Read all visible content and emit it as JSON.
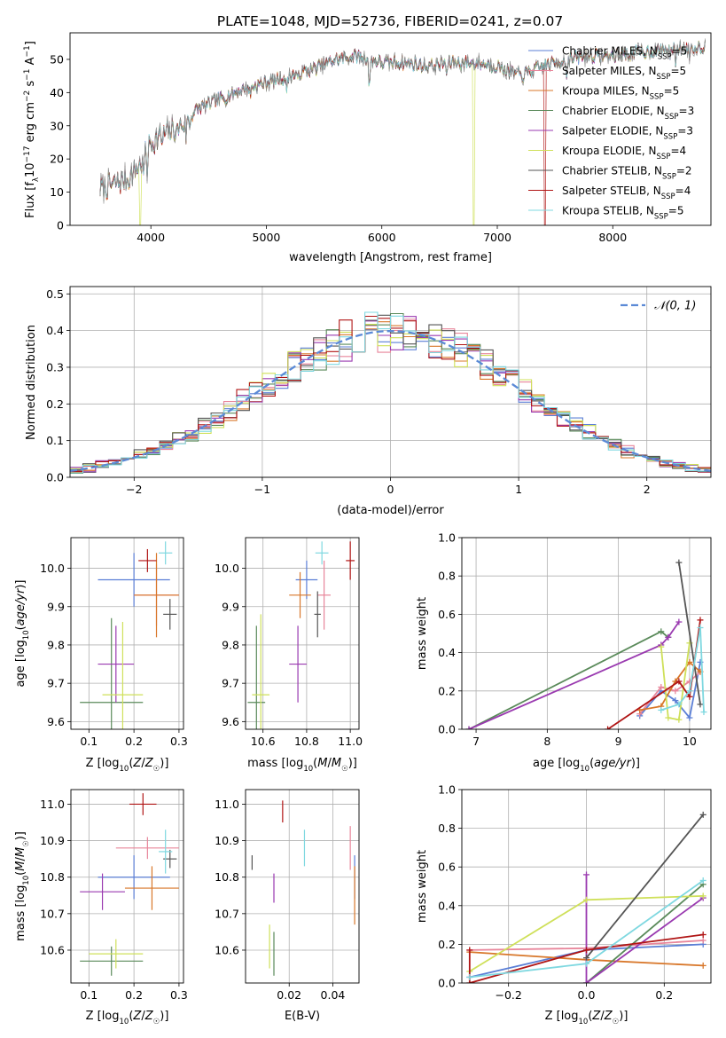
{
  "figure_title": "PLATE=1048, MJD=52736, FIBERID=0241, z=0.07",
  "colors": {
    "Chabrier MILES": "#5b7fd6",
    "Salpeter MILES": "#e8859a",
    "Kroupa MILES": "#d8772a",
    "Chabrier ELODIE": "#5a8a5a",
    "Salpeter ELODIE": "#9a3ab0",
    "Kroupa ELODIE": "#cfe05a",
    "Chabrier STELIB": "#555555",
    "Salpeter STELIB": "#b01515",
    "Kroupa STELIB": "#7fd8e0"
  },
  "chart_data": [
    {
      "id": "spectrum",
      "type": "line",
      "title": "",
      "xlabel": "wavelength [Angstrom, rest frame]",
      "ylabel": "Flux [f_λ10^-17 erg cm^-2 s^-1 A^-1]",
      "xlim": [
        3300,
        8850
      ],
      "ylim": [
        0,
        58
      ],
      "xticks": [
        4000,
        5000,
        6000,
        7000,
        8000
      ],
      "yticks": [
        0,
        10,
        20,
        30,
        40,
        50
      ],
      "grid": false,
      "legend": "top-right",
      "legend_entries": [
        {
          "label": "Chabrier MILES, N",
          "sub": "SSP",
          "suffix": "=5"
        },
        {
          "label": "Salpeter MILES, N",
          "sub": "SSP",
          "suffix": "=5"
        },
        {
          "label": "Kroupa MILES, N",
          "sub": "SSP",
          "suffix": "=5"
        },
        {
          "label": "Chabrier ELODIE, N",
          "sub": "SSP",
          "suffix": "=3"
        },
        {
          "label": "Salpeter ELODIE, N",
          "sub": "SSP",
          "suffix": "=3"
        },
        {
          "label": "Kroupa ELODIE, N",
          "sub": "SSP",
          "suffix": "=4"
        },
        {
          "label": "Chabrier STELIB, N",
          "sub": "SSP",
          "suffix": "=2"
        },
        {
          "label": "Salpeter STELIB, N",
          "sub": "SSP",
          "suffix": "=4"
        },
        {
          "label": "Kroupa STELIB, N",
          "sub": "SSP",
          "suffix": "=5"
        }
      ],
      "continuum": [
        [
          3560,
          11
        ],
        [
          3650,
          12
        ],
        [
          3800,
          14
        ],
        [
          3900,
          18
        ],
        [
          3950,
          21
        ],
        [
          4000,
          25
        ],
        [
          4100,
          27
        ],
        [
          4200,
          29
        ],
        [
          4300,
          31
        ],
        [
          4400,
          35
        ],
        [
          4600,
          38
        ],
        [
          4800,
          41
        ],
        [
          5000,
          43
        ],
        [
          5200,
          45
        ],
        [
          5400,
          47
        ],
        [
          5600,
          50
        ],
        [
          5800,
          51
        ],
        [
          6000,
          49
        ],
        [
          6200,
          49
        ],
        [
          6400,
          48
        ],
        [
          6600,
          49
        ],
        [
          6800,
          49
        ],
        [
          7000,
          48
        ],
        [
          7200,
          45
        ],
        [
          7400,
          48
        ],
        [
          7600,
          50
        ],
        [
          7800,
          51
        ],
        [
          8000,
          51
        ],
        [
          8200,
          52
        ],
        [
          8500,
          53
        ],
        [
          8800,
          54
        ]
      ],
      "absorption_features": [
        [
          3934,
          -6
        ],
        [
          3968,
          -6
        ],
        [
          4101,
          -3
        ],
        [
          4227,
          -3
        ],
        [
          4304,
          -5
        ],
        [
          4340,
          -3
        ],
        [
          4861,
          -3
        ],
        [
          5175,
          -6
        ],
        [
          5270,
          -3
        ],
        [
          5892,
          -12
        ],
        [
          6563,
          -4
        ],
        [
          7600,
          -6
        ],
        [
          8500,
          -3
        ],
        [
          8542,
          -4
        ],
        [
          8662,
          -3
        ]
      ],
      "model_dropouts": [
        {
          "series": "Kroupa ELODIE",
          "x": 3910
        },
        {
          "series": "Kroupa ELODIE",
          "x": 6795
        },
        {
          "series": "Salpeter STELIB",
          "x": 7410
        }
      ]
    },
    {
      "id": "residuals",
      "type": "step",
      "xlabel": "(data-model)/error",
      "ylabel": "Normed distribution",
      "xlim": [
        -2.5,
        2.5
      ],
      "ylim": [
        0,
        0.52
      ],
      "xticks": [
        -2,
        -1,
        0,
        1,
        2
      ],
      "yticks": [
        0.0,
        0.1,
        0.2,
        0.3,
        0.4,
        0.5
      ],
      "grid": true,
      "legend": "top-right",
      "reference_label": "𝒩(0, 1)",
      "reference": "normal(0,1)",
      "bin_width": 0.1,
      "bin_start": -2.5
    },
    {
      "id": "age-vs-Z",
      "type": "scatter",
      "xlabel": "Z [log₁₀(Z/Z☉)]",
      "ylabel": "age  [log₁₀(age/yr)]",
      "xlim": [
        0.06,
        0.31
      ],
      "ylim": [
        9.58,
        10.08
      ],
      "xticks": [
        0.1,
        0.2,
        0.3
      ],
      "yticks": [
        9.6,
        9.7,
        9.8,
        9.9,
        10.0
      ],
      "grid": true,
      "points": [
        {
          "series": "Chabrier MILES",
          "x": 0.2,
          "y": 9.97,
          "xerr": 0.08,
          "yerr": 0.07
        },
        {
          "series": "Salpeter MILES",
          "x": 0.25,
          "y": 9.93,
          "xerr": 0.05,
          "yerr": 0.08
        },
        {
          "series": "Kroupa MILES",
          "x": 0.25,
          "y": 9.93,
          "xerr": 0.05,
          "yerr": 0.11
        },
        {
          "series": "Chabrier ELODIE",
          "x": 0.15,
          "y": 9.65,
          "xerr": 0.07,
          "yerr": 0.22
        },
        {
          "series": "Salpeter ELODIE",
          "x": 0.16,
          "y": 9.75,
          "xerr": 0.04,
          "yerr": 0.1
        },
        {
          "series": "Kroupa ELODIE",
          "x": 0.175,
          "y": 9.67,
          "xerr": 0.045,
          "yerr": 0.19
        },
        {
          "series": "Chabrier STELIB",
          "x": 0.28,
          "y": 9.88,
          "xerr": 0.015,
          "yerr": 0.04
        },
        {
          "series": "Salpeter STELIB",
          "x": 0.23,
          "y": 10.02,
          "xerr": 0.02,
          "yerr": 0.03
        },
        {
          "series": "Kroupa STELIB",
          "x": 0.27,
          "y": 10.04,
          "xerr": 0.015,
          "yerr": 0.03
        }
      ]
    },
    {
      "id": "age-vs-mass",
      "type": "scatter",
      "xlabel": "mass [log₁₀(M/M☉)]",
      "ylabel": "",
      "xlim": [
        10.52,
        11.04
      ],
      "ylim": [
        9.58,
        10.08
      ],
      "xticks": [
        10.6,
        10.8,
        11.0
      ],
      "yticks": [
        9.6,
        9.7,
        9.8,
        9.9,
        10.0
      ],
      "grid": true,
      "points": [
        {
          "series": "Chabrier MILES",
          "x": 10.8,
          "y": 9.97,
          "xerr": 0.05,
          "yerr": 0.05
        },
        {
          "series": "Salpeter MILES",
          "x": 10.88,
          "y": 9.93,
          "xerr": 0.03,
          "yerr": 0.09
        },
        {
          "series": "Kroupa MILES",
          "x": 10.77,
          "y": 9.93,
          "xerr": 0.05,
          "yerr": 0.06
        },
        {
          "series": "Chabrier ELODIE",
          "x": 10.57,
          "y": 9.65,
          "xerr": 0.04,
          "yerr": 0.2
        },
        {
          "series": "Salpeter ELODIE",
          "x": 10.76,
          "y": 9.75,
          "xerr": 0.04,
          "yerr": 0.1
        },
        {
          "series": "Kroupa ELODIE",
          "x": 10.59,
          "y": 9.67,
          "xerr": 0.04,
          "yerr": 0.21
        },
        {
          "series": "Chabrier STELIB",
          "x": 10.85,
          "y": 9.88,
          "xerr": 0.015,
          "yerr": 0.06
        },
        {
          "series": "Salpeter STELIB",
          "x": 11.0,
          "y": 10.02,
          "xerr": 0.02,
          "yerr": 0.05
        },
        {
          "series": "Kroupa STELIB",
          "x": 10.87,
          "y": 10.04,
          "xerr": 0.03,
          "yerr": 0.03
        }
      ]
    },
    {
      "id": "weight-vs-age",
      "type": "line",
      "xlabel": "age  [log₁₀(age/yr)]",
      "ylabel": "mass weight",
      "xlim": [
        6.8,
        10.3
      ],
      "ylim": [
        0,
        1.0
      ],
      "xticks": [
        7,
        8,
        9,
        10
      ],
      "yticks": [
        0.0,
        0.2,
        0.4,
        0.6,
        0.8,
        1.0
      ],
      "grid": true,
      "series": [
        {
          "name": "Chabrier MILES",
          "points": [
            [
              9.3,
              0.07
            ],
            [
              9.6,
              0.2
            ],
            [
              9.8,
              0.15
            ],
            [
              10.0,
              0.06
            ],
            [
              10.15,
              0.35
            ]
          ]
        },
        {
          "name": "Salpeter MILES",
          "points": [
            [
              9.3,
              0.08
            ],
            [
              9.6,
              0.22
            ],
            [
              9.8,
              0.2
            ],
            [
              10.0,
              0.25
            ],
            [
              10.15,
              0.3
            ]
          ]
        },
        {
          "name": "Kroupa MILES",
          "points": [
            [
              9.3,
              0.1
            ],
            [
              9.6,
              0.12
            ],
            [
              9.8,
              0.25
            ],
            [
              10.0,
              0.35
            ],
            [
              10.15,
              0.3
            ]
          ]
        },
        {
          "name": "Chabrier ELODIE",
          "points": [
            [
              6.9,
              0.0
            ],
            [
              9.6,
              0.51
            ],
            [
              9.7,
              0.48
            ]
          ]
        },
        {
          "name": "Salpeter ELODIE",
          "points": [
            [
              6.9,
              0.0
            ],
            [
              9.6,
              0.44
            ],
            [
              9.7,
              0.48
            ],
            [
              9.85,
              0.56
            ]
          ]
        },
        {
          "name": "Kroupa ELODIE",
          "points": [
            [
              9.6,
              0.43
            ],
            [
              9.7,
              0.06
            ],
            [
              9.85,
              0.05
            ],
            [
              10.0,
              0.45
            ]
          ]
        },
        {
          "name": "Chabrier STELIB",
          "points": [
            [
              9.85,
              0.87
            ],
            [
              10.15,
              0.13
            ]
          ]
        },
        {
          "name": "Salpeter STELIB",
          "points": [
            [
              8.85,
              0.0
            ],
            [
              9.85,
              0.25
            ],
            [
              10.0,
              0.17
            ],
            [
              10.15,
              0.57
            ]
          ]
        },
        {
          "name": "Kroupa STELIB",
          "points": [
            [
              9.6,
              0.1
            ],
            [
              9.85,
              0.13
            ],
            [
              10.0,
              0.2
            ],
            [
              10.15,
              0.53
            ],
            [
              10.2,
              0.09
            ]
          ]
        }
      ]
    },
    {
      "id": "mass-vs-Z",
      "type": "scatter",
      "xlabel": "Z [log₁₀(Z/Z☉)]",
      "ylabel": "mass [log₁₀(M/M☉)]",
      "xlim": [
        0.06,
        0.31
      ],
      "ylim": [
        10.51,
        11.04
      ],
      "xticks": [
        0.1,
        0.2,
        0.3
      ],
      "yticks": [
        10.6,
        10.7,
        10.8,
        10.9,
        11.0
      ],
      "grid": true,
      "points": [
        {
          "series": "Chabrier MILES",
          "x": 0.2,
          "y": 10.8,
          "xerr": 0.08,
          "yerr": 0.06
        },
        {
          "series": "Salpeter MILES",
          "x": 0.23,
          "y": 10.88,
          "xerr": 0.07,
          "yerr": 0.03
        },
        {
          "series": "Kroupa MILES",
          "x": 0.24,
          "y": 10.77,
          "xerr": 0.06,
          "yerr": 0.06
        },
        {
          "series": "Chabrier ELODIE",
          "x": 0.15,
          "y": 10.57,
          "xerr": 0.07,
          "yerr": 0.04
        },
        {
          "series": "Salpeter ELODIE",
          "x": 0.13,
          "y": 10.76,
          "xerr": 0.05,
          "yerr": 0.05
        },
        {
          "series": "Kroupa ELODIE",
          "x": 0.16,
          "y": 10.59,
          "xerr": 0.06,
          "yerr": 0.04
        },
        {
          "series": "Chabrier STELIB",
          "x": 0.28,
          "y": 10.85,
          "xerr": 0.015,
          "yerr": 0.025
        },
        {
          "series": "Salpeter STELIB",
          "x": 0.22,
          "y": 11.0,
          "xerr": 0.03,
          "yerr": 0.03
        },
        {
          "series": "Kroupa STELIB",
          "x": 0.27,
          "y": 10.87,
          "xerr": 0.015,
          "yerr": 0.06
        }
      ]
    },
    {
      "id": "mass-vs-ebv",
      "type": "errorbar",
      "xlabel": "E(B-V)",
      "ylabel": "",
      "xlim": [
        0.0,
        0.052
      ],
      "ylim": [
        10.51,
        11.04
      ],
      "xticks": [
        0.02,
        0.04
      ],
      "yticks": [
        10.6,
        10.7,
        10.8,
        10.9,
        11.0
      ],
      "grid": true,
      "points": [
        {
          "series": "Chabrier MILES",
          "x": 0.05,
          "y": 10.8,
          "yerr": 0.06
        },
        {
          "series": "Salpeter MILES",
          "x": 0.048,
          "y": 10.88,
          "yerr": 0.06
        },
        {
          "series": "Kroupa MILES",
          "x": 0.05,
          "y": 10.75,
          "yerr": 0.08
        },
        {
          "series": "Chabrier ELODIE",
          "x": 0.013,
          "y": 10.59,
          "yerr": 0.06
        },
        {
          "series": "Salpeter ELODIE",
          "x": 0.013,
          "y": 10.77,
          "yerr": 0.04
        },
        {
          "series": "Kroupa ELODIE",
          "x": 0.011,
          "y": 10.61,
          "yerr": 0.06
        },
        {
          "series": "Chabrier STELIB",
          "x": 0.003,
          "y": 10.84,
          "yerr": 0.02
        },
        {
          "series": "Salpeter STELIB",
          "x": 0.017,
          "y": 10.98,
          "yerr": 0.03
        },
        {
          "series": "Kroupa STELIB",
          "x": 0.027,
          "y": 10.88,
          "yerr": 0.05
        }
      ]
    },
    {
      "id": "weight-vs-Z",
      "type": "line",
      "xlabel": "Z [log₁₀(Z/Z☉)]",
      "ylabel": "mass weight",
      "xlim": [
        -0.32,
        0.32
      ],
      "ylim": [
        0,
        1.0
      ],
      "xticks": [
        -0.2,
        0.0,
        0.2
      ],
      "yticks": [
        0.0,
        0.2,
        0.4,
        0.6,
        0.8,
        1.0
      ],
      "grid": true,
      "series": [
        {
          "name": "Chabrier MILES",
          "points": [
            [
              -0.3,
              0.03
            ],
            [
              0.0,
              0.17
            ],
            [
              0.3,
              0.2
            ]
          ]
        },
        {
          "name": "Salpeter MILES",
          "points": [
            [
              -0.3,
              0.17
            ],
            [
              0.0,
              0.18
            ],
            [
              0.3,
              0.22
            ]
          ]
        },
        {
          "name": "Kroupa MILES",
          "points": [
            [
              -0.3,
              0.16
            ],
            [
              0.0,
              0.12
            ],
            [
              0.3,
              0.09
            ]
          ]
        },
        {
          "name": "Chabrier ELODIE",
          "points": [
            [
              0.0,
              0.0
            ],
            [
              0.3,
              0.51
            ]
          ]
        },
        {
          "name": "Salpeter ELODIE",
          "points": [
            [
              0.0,
              0.56
            ],
            [
              0.0,
              0.0
            ],
            [
              0.3,
              0.44
            ]
          ]
        },
        {
          "name": "Kroupa ELODIE",
          "points": [
            [
              -0.3,
              0.06
            ],
            [
              0.0,
              0.43
            ],
            [
              0.3,
              0.45
            ]
          ]
        },
        {
          "name": "Chabrier STELIB",
          "points": [
            [
              0.0,
              0.13
            ],
            [
              0.3,
              0.87
            ]
          ]
        },
        {
          "name": "Salpeter STELIB",
          "points": [
            [
              -0.3,
              0.17
            ],
            [
              -0.3,
              0.0
            ],
            [
              0.0,
              0.17
            ],
            [
              0.3,
              0.25
            ]
          ]
        },
        {
          "name": "Kroupa STELIB",
          "points": [
            [
              -0.3,
              0.03
            ],
            [
              0.0,
              0.1
            ],
            [
              0.3,
              0.53
            ]
          ]
        }
      ]
    }
  ]
}
